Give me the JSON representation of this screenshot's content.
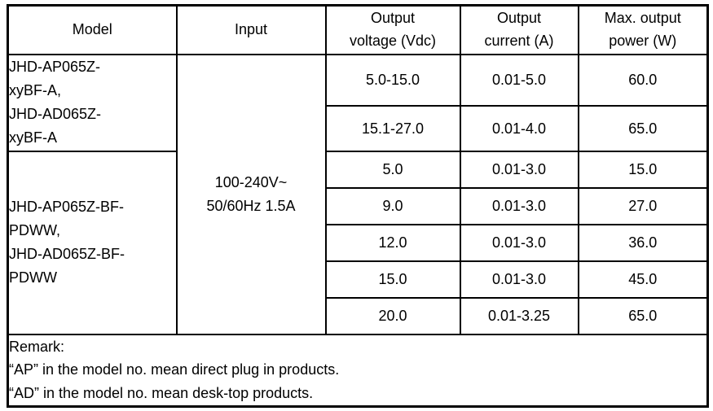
{
  "table": {
    "headers": [
      {
        "lines": [
          "Model"
        ]
      },
      {
        "lines": [
          "Input"
        ]
      },
      {
        "lines": [
          "Output",
          "voltage (Vdc)"
        ]
      },
      {
        "lines": [
          "Output",
          "current (A)"
        ]
      },
      {
        "lines": [
          "Max. output",
          "power (W)"
        ]
      }
    ],
    "model_groups": [
      {
        "lines": [
          "JHD-AP065Z-",
          "xyBF-A,",
          "JHD-AD065Z-",
          "xyBF-A"
        ]
      },
      {
        "lines": [
          "JHD-AP065Z-BF-",
          "PDWW,",
          "JHD-AD065Z-BF-",
          "PDWW"
        ]
      }
    ],
    "input": {
      "lines": [
        "100-240V~",
        "50/60Hz 1.5A"
      ]
    },
    "rows": [
      {
        "voltage": "5.0-15.0",
        "current": "0.01-5.0",
        "power": "60.0"
      },
      {
        "voltage": "15.1-27.0",
        "current": "0.01-4.0",
        "power": "65.0"
      },
      {
        "voltage": "5.0",
        "current": "0.01-3.0",
        "power": "15.0"
      },
      {
        "voltage": "9.0",
        "current": "0.01-3.0",
        "power": "27.0"
      },
      {
        "voltage": "12.0",
        "current": "0.01-3.0",
        "power": "36.0"
      },
      {
        "voltage": "15.0",
        "current": "0.01-3.0",
        "power": "45.0"
      },
      {
        "voltage": "20.0",
        "current": "0.01-3.25",
        "power": "65.0"
      }
    ],
    "remark": {
      "lines": [
        "Remark:",
        "“AP” in the model no. mean direct plug in products.",
        "“AD” in the model no. mean desk-top products."
      ]
    },
    "colors": {
      "border": "#000000",
      "text": "#000000",
      "background": "#ffffff"
    }
  }
}
